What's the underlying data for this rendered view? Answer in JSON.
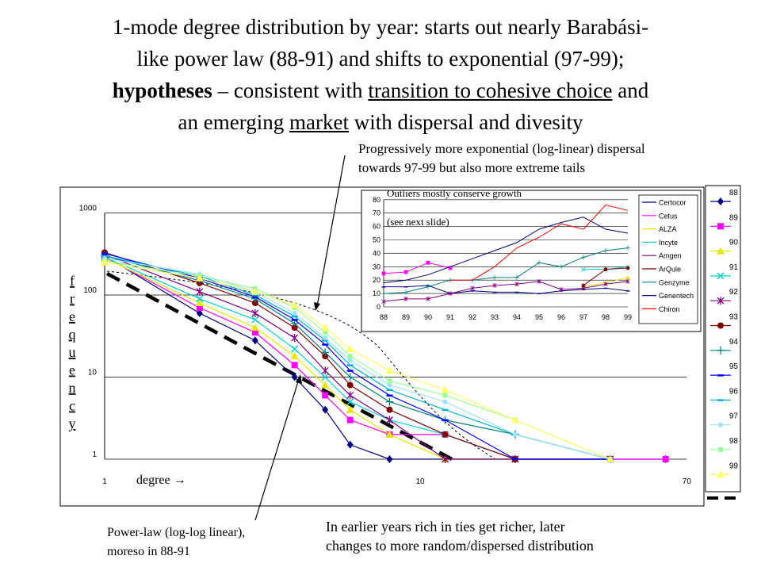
{
  "title": {
    "line1": "1-mode degree distribution by year: starts out nearly Barabási-",
    "line2": "like power law (88-91) and shifts to exponential (97-99);",
    "line3_bold": "hypotheses",
    "line3_mid": " – consistent with ",
    "line3_u": "transition to cohesive choice",
    "line3_end": " and",
    "line4_a": "an emerging ",
    "line4_u": "market",
    "line4_b": " with dispersal and divesity"
  },
  "annotations": {
    "top_right_1": "Progressively more exponential (log-linear) dispersal",
    "top_right_2": "towards 97-99 but also more extreme tails",
    "bottom_left_1": "Power-law (log-log linear),",
    "bottom_left_2": "moreso in 88-91",
    "bottom_right_1": "In earlier years rich in ties get richer, later",
    "bottom_right_2": "changes to more random/dispersed distribution"
  },
  "chart_data": [
    {
      "type": "line",
      "x_scale": "log",
      "y_scale": "log",
      "ylabel": "frequency",
      "xlabel": "degree →",
      "y_ticks": [
        "1000",
        "100",
        "10",
        "1"
      ],
      "x_ticks": [
        "1",
        "10",
        "70"
      ],
      "legend_position": "right",
      "series": [
        {
          "name": "88",
          "color": "#000080",
          "marker": "diamond",
          "x": [
            1,
            2,
            3,
            4,
            5,
            6,
            8,
            12,
            20,
            40,
            60
          ],
          "y": [
            300,
            60,
            28,
            10,
            4,
            1.5,
            1,
            1,
            1,
            1,
            1
          ]
        },
        {
          "name": "89",
          "color": "#ff00ff",
          "marker": "square",
          "x": [
            1,
            2,
            3,
            4,
            5,
            6,
            8,
            12,
            20,
            40,
            60
          ],
          "y": [
            290,
            70,
            35,
            14,
            6,
            3,
            2,
            2,
            1,
            1,
            1
          ]
        },
        {
          "name": "90",
          "color": "#e6e600",
          "marker": "triangle",
          "x": [
            1,
            2,
            3,
            4,
            5,
            6,
            8,
            12,
            20,
            40
          ],
          "y": [
            280,
            80,
            40,
            18,
            8,
            4,
            2,
            1,
            1,
            1
          ]
        },
        {
          "name": "91",
          "color": "#00d0d0",
          "marker": "x",
          "x": [
            1,
            2,
            3,
            4,
            5,
            6,
            8,
            12,
            20,
            40
          ],
          "y": [
            290,
            90,
            50,
            22,
            10,
            5,
            3,
            2,
            1,
            1
          ]
        },
        {
          "name": "92",
          "color": "#800080",
          "marker": "star",
          "x": [
            1,
            2,
            3,
            4,
            5,
            6,
            8,
            12,
            20,
            40
          ],
          "y": [
            310,
            110,
            60,
            30,
            12,
            6,
            3,
            1,
            1,
            1
          ]
        },
        {
          "name": "93",
          "color": "#800000",
          "marker": "circle",
          "x": [
            1,
            2,
            3,
            4,
            5,
            6,
            8,
            12,
            20,
            40
          ],
          "y": [
            330,
            140,
            80,
            40,
            18,
            8,
            4,
            2,
            1,
            1
          ]
        },
        {
          "name": "94",
          "color": "#008080",
          "marker": "plus",
          "x": [
            1,
            2,
            3,
            4,
            5,
            6,
            8,
            12,
            20,
            40
          ],
          "y": [
            300,
            150,
            90,
            45,
            20,
            10,
            5,
            3,
            2,
            1
          ]
        },
        {
          "name": "95",
          "color": "#0000ff",
          "marker": "dash",
          "x": [
            1,
            2,
            3,
            4,
            5,
            6,
            8,
            12,
            20,
            40
          ],
          "y": [
            320,
            160,
            95,
            50,
            25,
            12,
            6,
            3,
            1,
            1
          ]
        },
        {
          "name": "96",
          "color": "#00b0e0",
          "marker": "dash",
          "x": [
            1,
            2,
            3,
            4,
            5,
            6,
            8,
            12,
            20,
            40
          ],
          "y": [
            300,
            170,
            100,
            55,
            28,
            14,
            7,
            4,
            2,
            1
          ]
        },
        {
          "name": "97",
          "color": "#a0e0ff",
          "marker": "circle-small",
          "x": [
            1,
            2,
            3,
            4,
            5,
            6,
            8,
            12,
            20,
            40
          ],
          "y": [
            280,
            180,
            110,
            60,
            30,
            16,
            8,
            5,
            2,
            1
          ]
        },
        {
          "name": "98",
          "color": "#99ff99",
          "marker": "square-small",
          "x": [
            1,
            2,
            3,
            4,
            5,
            6,
            8,
            12,
            20,
            40
          ],
          "y": [
            260,
            170,
            120,
            70,
            35,
            18,
            9,
            6,
            3,
            1
          ]
        },
        {
          "name": "99",
          "color": "#ffff66",
          "marker": "triangle",
          "x": [
            1,
            2,
            3,
            4,
            5,
            6,
            8,
            12,
            20,
            40
          ],
          "y": [
            250,
            160,
            110,
            75,
            40,
            22,
            12,
            7,
            3,
            1
          ]
        }
      ]
    },
    {
      "type": "line",
      "title": "Outliers mostly conserve growth",
      "subtitle": "(see next slide)",
      "categories": [
        "88",
        "89",
        "90",
        "91",
        "92",
        "93",
        "94",
        "95",
        "96",
        "97",
        "98",
        "99"
      ],
      "ylim": [
        0,
        80
      ],
      "y_ticks": [
        0,
        10,
        20,
        30,
        40,
        50,
        60,
        70,
        80
      ],
      "grid": true,
      "legend_position": "right",
      "series": [
        {
          "name": "Certocor",
          "color": "#000080",
          "values": [
            15,
            15,
            16,
            10,
            12,
            11,
            11,
            10,
            12,
            13,
            14,
            12
          ]
        },
        {
          "name": "Cetus",
          "color": "#ff00ff",
          "values": [
            25,
            26,
            33,
            29,
            null,
            null,
            null,
            null,
            null,
            null,
            null,
            null
          ]
        },
        {
          "name": "ALZA",
          "color": "#e6e600",
          "values": [
            null,
            null,
            null,
            null,
            null,
            null,
            null,
            null,
            null,
            15,
            18,
            22
          ]
        },
        {
          "name": "Incyte",
          "color": "#00d0d0",
          "values": [
            null,
            null,
            null,
            null,
            null,
            null,
            null,
            null,
            null,
            28,
            28,
            30
          ]
        },
        {
          "name": "Amgen",
          "color": "#800080",
          "values": [
            4,
            6,
            6,
            10,
            14,
            16,
            17,
            19,
            13,
            14,
            17,
            19
          ]
        },
        {
          "name": "ArQule",
          "color": "#800000",
          "values": [
            null,
            null,
            null,
            null,
            null,
            null,
            null,
            null,
            null,
            16,
            28,
            29
          ]
        },
        {
          "name": "Genzyme",
          "color": "#008080",
          "values": [
            10,
            11,
            15,
            20,
            20,
            22,
            22,
            33,
            30,
            37,
            42,
            44
          ]
        },
        {
          "name": "Genentech",
          "color": "#000080",
          "values": [
            18,
            20,
            24,
            30,
            36,
            42,
            48,
            58,
            63,
            67,
            58,
            55
          ]
        },
        {
          "name": "Chiron",
          "color": "#ff0000",
          "values": [
            null,
            null,
            null,
            20,
            20,
            30,
            44,
            52,
            62,
            58,
            76,
            72
          ]
        }
      ]
    }
  ]
}
